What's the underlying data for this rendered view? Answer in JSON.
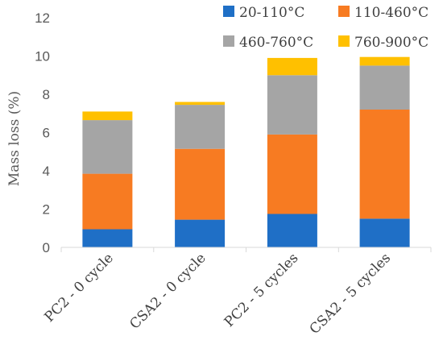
{
  "chart_data": {
    "type": "bar",
    "stacked": true,
    "categories": [
      "PC2 - 0 cycle",
      "CSA2 - 0 cycle",
      "PC2 - 5 cycles",
      "CSA2 - 5 cycles"
    ],
    "series": [
      {
        "name": "20-110°C",
        "color": "#1f6fc6",
        "values": [
          0.95,
          1.45,
          1.75,
          1.5
        ]
      },
      {
        "name": "110-460°C",
        "color": "#f77b22",
        "values": [
          2.9,
          3.7,
          4.15,
          5.7
        ]
      },
      {
        "name": "460-760°C",
        "color": "#a5a5a5",
        "values": [
          2.8,
          2.3,
          3.1,
          2.3
        ]
      },
      {
        "name": "760-900°C",
        "color": "#ffc000",
        "values": [
          0.45,
          0.15,
          0.9,
          0.45
        ]
      }
    ],
    "title": "",
    "xlabel": "",
    "ylabel": "Mass loss (%)",
    "ylim": [
      0,
      12
    ],
    "yticks": [
      "0",
      "2",
      "4",
      "6",
      "8",
      "10",
      "12"
    ],
    "grid": false,
    "legend_position": "top"
  }
}
